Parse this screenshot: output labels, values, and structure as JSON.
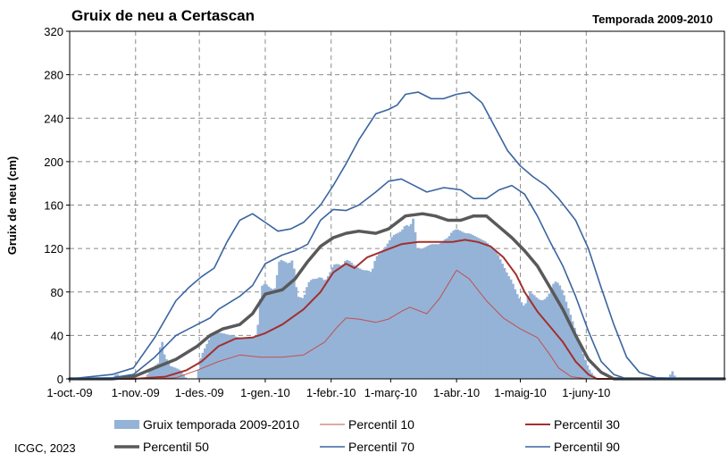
{
  "chart_data": {
    "type": "bar+line",
    "title": "Gruix de neu a Certascan",
    "season_label": "Temporada 2009-2010",
    "ylabel": "Gruix de neu (cm)",
    "xlabel": "",
    "ylim": [
      0,
      320
    ],
    "y_ticks": [
      "0",
      "40",
      "80",
      "120",
      "160",
      "200",
      "240",
      "280",
      "320"
    ],
    "x_ticks": [
      {
        "label": "1-oct.-09",
        "day": 0
      },
      {
        "label": "1-nov.-09",
        "day": 31
      },
      {
        "label": "1-des.-09",
        "day": 61
      },
      {
        "label": "1-gen.-10",
        "day": 92
      },
      {
        "label": "1-febr.-10",
        "day": 123
      },
      {
        "label": "1-març-10",
        "day": 151
      },
      {
        "label": "1-abr.-10",
        "day": 182
      },
      {
        "label": "1-maig-10",
        "day": 212
      },
      {
        "label": "1-juny-10",
        "day": 243
      }
    ],
    "x_max_day": 308,
    "grid": true,
    "legend_position": "bottom",
    "bars": {
      "name": "Gruix temporada 2009-2010",
      "color": "#95b3d7",
      "points": [
        [
          20,
          0
        ],
        [
          22,
          5
        ],
        [
          25,
          0
        ],
        [
          35,
          0
        ],
        [
          38,
          8
        ],
        [
          40,
          12
        ],
        [
          42,
          15
        ],
        [
          43,
          43
        ],
        [
          44,
          25
        ],
        [
          45,
          20
        ],
        [
          47,
          12
        ],
        [
          50,
          10
        ],
        [
          52,
          8
        ],
        [
          55,
          0
        ],
        [
          60,
          0
        ],
        [
          61,
          16
        ],
        [
          62,
          22
        ],
        [
          64,
          30
        ],
        [
          66,
          38
        ],
        [
          68,
          43
        ],
        [
          72,
          42
        ],
        [
          76,
          40
        ],
        [
          80,
          38
        ],
        [
          84,
          38
        ],
        [
          88,
          38
        ],
        [
          90,
          85
        ],
        [
          92,
          88
        ],
        [
          94,
          84
        ],
        [
          96,
          82
        ],
        [
          97,
          85
        ],
        [
          98,
          106
        ],
        [
          99,
          110
        ],
        [
          101,
          108
        ],
        [
          103,
          106
        ],
        [
          105,
          110
        ],
        [
          107,
          76
        ],
        [
          110,
          74
        ],
        [
          112,
          88
        ],
        [
          114,
          92
        ],
        [
          116,
          92
        ],
        [
          118,
          94
        ],
        [
          120,
          90
        ],
        [
          122,
          96
        ],
        [
          124,
          105
        ],
        [
          126,
          106
        ],
        [
          128,
          104
        ],
        [
          130,
          110
        ],
        [
          132,
          108
        ],
        [
          134,
          104
        ],
        [
          136,
          102
        ],
        [
          138,
          100
        ],
        [
          140,
          100
        ],
        [
          142,
          98
        ],
        [
          144,
          112
        ],
        [
          146,
          116
        ],
        [
          148,
          120
        ],
        [
          150,
          126
        ],
        [
          152,
          132
        ],
        [
          154,
          134
        ],
        [
          156,
          136
        ],
        [
          158,
          142
        ],
        [
          160,
          140
        ],
        [
          162,
          150
        ],
        [
          163,
          120
        ],
        [
          166,
          120
        ],
        [
          168,
          122
        ],
        [
          170,
          124
        ],
        [
          172,
          124
        ],
        [
          174,
          124
        ],
        [
          176,
          128
        ],
        [
          178,
          130
        ],
        [
          180,
          136
        ],
        [
          182,
          138
        ],
        [
          184,
          136
        ],
        [
          186,
          134
        ],
        [
          188,
          134
        ],
        [
          190,
          132
        ],
        [
          192,
          130
        ],
        [
          194,
          128
        ],
        [
          196,
          126
        ],
        [
          198,
          122
        ],
        [
          200,
          120
        ],
        [
          202,
          112
        ],
        [
          204,
          104
        ],
        [
          206,
          96
        ],
        [
          208,
          90
        ],
        [
          210,
          80
        ],
        [
          212,
          72
        ],
        [
          214,
          66
        ],
        [
          216,
          80
        ],
        [
          218,
          78
        ],
        [
          220,
          74
        ],
        [
          222,
          72
        ],
        [
          224,
          74
        ],
        [
          226,
          80
        ],
        [
          228,
          90
        ],
        [
          230,
          88
        ],
        [
          232,
          80
        ],
        [
          234,
          68
        ],
        [
          236,
          56
        ],
        [
          238,
          44
        ],
        [
          240,
          32
        ],
        [
          242,
          20
        ],
        [
          244,
          10
        ],
        [
          246,
          4
        ],
        [
          248,
          0
        ],
        [
          282,
          0
        ],
        [
          283,
          8
        ],
        [
          284,
          6
        ],
        [
          285,
          0
        ]
      ]
    },
    "series": [
      {
        "name": "Percentil 10",
        "color": "#c0504d",
        "width": 1,
        "points": [
          [
            0,
            0
          ],
          [
            40,
            0
          ],
          [
            50,
            1
          ],
          [
            60,
            8
          ],
          [
            70,
            16
          ],
          [
            80,
            22
          ],
          [
            90,
            20
          ],
          [
            100,
            20
          ],
          [
            110,
            22
          ],
          [
            120,
            34
          ],
          [
            126,
            48
          ],
          [
            130,
            56
          ],
          [
            136,
            55
          ],
          [
            144,
            52
          ],
          [
            150,
            55
          ],
          [
            156,
            62
          ],
          [
            160,
            66
          ],
          [
            168,
            60
          ],
          [
            174,
            74
          ],
          [
            182,
            100
          ],
          [
            188,
            92
          ],
          [
            196,
            72
          ],
          [
            204,
            56
          ],
          [
            212,
            46
          ],
          [
            220,
            38
          ],
          [
            226,
            22
          ],
          [
            230,
            10
          ],
          [
            236,
            2
          ],
          [
            244,
            0
          ],
          [
            308,
            0
          ]
        ]
      },
      {
        "name": "Percentil 30",
        "color": "#a1302e",
        "width": 2,
        "points": [
          [
            0,
            0
          ],
          [
            30,
            0
          ],
          [
            45,
            2
          ],
          [
            55,
            8
          ],
          [
            62,
            16
          ],
          [
            70,
            30
          ],
          [
            78,
            37
          ],
          [
            86,
            38
          ],
          [
            92,
            42
          ],
          [
            100,
            50
          ],
          [
            110,
            64
          ],
          [
            118,
            80
          ],
          [
            124,
            98
          ],
          [
            130,
            106
          ],
          [
            134,
            102
          ],
          [
            140,
            112
          ],
          [
            148,
            118
          ],
          [
            156,
            124
          ],
          [
            164,
            126
          ],
          [
            172,
            126
          ],
          [
            180,
            126
          ],
          [
            186,
            128
          ],
          [
            192,
            126
          ],
          [
            198,
            122
          ],
          [
            204,
            112
          ],
          [
            210,
            96
          ],
          [
            214,
            80
          ],
          [
            220,
            62
          ],
          [
            226,
            48
          ],
          [
            232,
            34
          ],
          [
            238,
            16
          ],
          [
            244,
            4
          ],
          [
            248,
            0
          ],
          [
            308,
            0
          ]
        ]
      },
      {
        "name": "Percentil 50",
        "color": "#595959",
        "width": 3.5,
        "points": [
          [
            0,
            0
          ],
          [
            20,
            0
          ],
          [
            30,
            2
          ],
          [
            40,
            10
          ],
          [
            50,
            18
          ],
          [
            60,
            30
          ],
          [
            66,
            40
          ],
          [
            72,
            46
          ],
          [
            80,
            50
          ],
          [
            86,
            60
          ],
          [
            92,
            78
          ],
          [
            100,
            82
          ],
          [
            106,
            92
          ],
          [
            112,
            108
          ],
          [
            118,
            122
          ],
          [
            124,
            130
          ],
          [
            130,
            134
          ],
          [
            136,
            136
          ],
          [
            144,
            134
          ],
          [
            150,
            138
          ],
          [
            158,
            150
          ],
          [
            166,
            152
          ],
          [
            172,
            150
          ],
          [
            178,
            146
          ],
          [
            184,
            146
          ],
          [
            190,
            150
          ],
          [
            196,
            150
          ],
          [
            202,
            140
          ],
          [
            208,
            130
          ],
          [
            214,
            118
          ],
          [
            220,
            104
          ],
          [
            226,
            84
          ],
          [
            232,
            64
          ],
          [
            238,
            40
          ],
          [
            244,
            18
          ],
          [
            250,
            6
          ],
          [
            256,
            0
          ],
          [
            308,
            0
          ]
        ]
      },
      {
        "name": "Percentil 70",
        "color": "#3a64a0",
        "width": 1.6,
        "points": [
          [
            0,
            0
          ],
          [
            20,
            1
          ],
          [
            30,
            4
          ],
          [
            40,
            20
          ],
          [
            50,
            40
          ],
          [
            60,
            50
          ],
          [
            66,
            56
          ],
          [
            70,
            64
          ],
          [
            80,
            76
          ],
          [
            86,
            86
          ],
          [
            92,
            106
          ],
          [
            100,
            114
          ],
          [
            106,
            118
          ],
          [
            112,
            124
          ],
          [
            118,
            146
          ],
          [
            124,
            156
          ],
          [
            130,
            155
          ],
          [
            136,
            160
          ],
          [
            144,
            172
          ],
          [
            150,
            182
          ],
          [
            156,
            184
          ],
          [
            162,
            178
          ],
          [
            168,
            172
          ],
          [
            176,
            176
          ],
          [
            184,
            174
          ],
          [
            190,
            166
          ],
          [
            196,
            166
          ],
          [
            202,
            174
          ],
          [
            208,
            178
          ],
          [
            214,
            170
          ],
          [
            220,
            150
          ],
          [
            226,
            126
          ],
          [
            232,
            104
          ],
          [
            238,
            76
          ],
          [
            244,
            44
          ],
          [
            250,
            16
          ],
          [
            256,
            4
          ],
          [
            262,
            0
          ],
          [
            308,
            0
          ]
        ]
      },
      {
        "name": "Percentil 90",
        "color": "#3a64a0",
        "width": 1.6,
        "points": [
          [
            0,
            0
          ],
          [
            20,
            4
          ],
          [
            30,
            10
          ],
          [
            40,
            38
          ],
          [
            50,
            72
          ],
          [
            56,
            84
          ],
          [
            62,
            94
          ],
          [
            68,
            102
          ],
          [
            74,
            126
          ],
          [
            80,
            146
          ],
          [
            86,
            152
          ],
          [
            92,
            144
          ],
          [
            98,
            136
          ],
          [
            104,
            138
          ],
          [
            110,
            144
          ],
          [
            118,
            160
          ],
          [
            124,
            178
          ],
          [
            130,
            198
          ],
          [
            136,
            220
          ],
          [
            144,
            244
          ],
          [
            150,
            248
          ],
          [
            154,
            252
          ],
          [
            158,
            262
          ],
          [
            164,
            264
          ],
          [
            170,
            258
          ],
          [
            176,
            258
          ],
          [
            182,
            262
          ],
          [
            188,
            264
          ],
          [
            194,
            254
          ],
          [
            200,
            232
          ],
          [
            206,
            210
          ],
          [
            212,
            196
          ],
          [
            218,
            186
          ],
          [
            224,
            178
          ],
          [
            230,
            166
          ],
          [
            238,
            146
          ],
          [
            244,
            120
          ],
          [
            250,
            84
          ],
          [
            256,
            50
          ],
          [
            262,
            20
          ],
          [
            268,
            6
          ],
          [
            276,
            1
          ],
          [
            290,
            0
          ],
          [
            308,
            0
          ]
        ]
      }
    ]
  },
  "credit": "ICGC, 2023"
}
